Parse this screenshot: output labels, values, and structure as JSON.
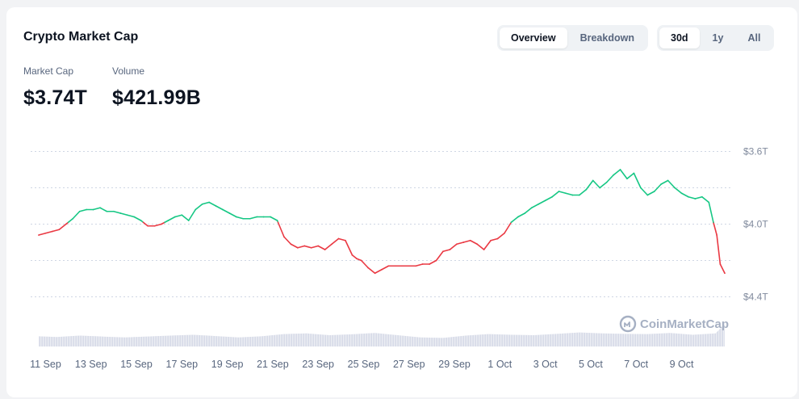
{
  "title": "Crypto Market Cap",
  "view_tabs": [
    {
      "label": "Overview",
      "active": true
    },
    {
      "label": "Breakdown",
      "active": false
    }
  ],
  "range_tabs": [
    {
      "label": "30d",
      "active": true
    },
    {
      "label": "1y",
      "active": false
    },
    {
      "label": "All",
      "active": false
    }
  ],
  "stats": {
    "market_cap_label": "Market Cap",
    "market_cap_value": "$3.74T",
    "volume_label": "Volume",
    "volume_value": "$421.99B"
  },
  "watermark": "CoinMarketCap",
  "colors": {
    "up": "#16c784",
    "down": "#ea3943",
    "grid": "#cfd6e4",
    "volume": "#c9cfe0"
  },
  "chart_data": {
    "type": "line",
    "title": "",
    "xlabel": "",
    "ylabel": "",
    "y_ticks": [
      "$3.6T",
      "$4.0T",
      "$4.4T"
    ],
    "ylim": [
      3.46,
      4.46
    ],
    "x_ticks": [
      "11 Sep",
      "13 Sep",
      "15 Sep",
      "17 Sep",
      "19 Sep",
      "21 Sep",
      "23 Sep",
      "25 Sep",
      "27 Sep",
      "29 Sep",
      "1 Oct",
      "3 Oct",
      "5 Oct",
      "7 Oct",
      "9 Oct"
    ],
    "x_range": [
      10.7,
      40.9
    ],
    "grid": true,
    "baseline": 4.01,
    "series": [
      {
        "x": [
          10.7,
          11.0,
          11.3,
          11.6,
          11.9,
          12.2,
          12.5,
          12.8,
          13.1,
          13.4,
          13.7,
          14.0,
          14.3,
          14.6,
          14.9,
          15.2,
          15.5,
          15.8,
          16.1,
          16.4,
          16.7,
          17.0,
          17.3,
          17.6,
          17.9,
          18.2,
          18.5,
          18.8,
          19.1,
          19.4,
          19.7,
          20.0,
          20.3,
          20.6,
          20.9,
          21.2,
          21.5,
          21.8,
          22.1,
          22.4,
          22.7,
          23.0,
          23.3,
          23.6,
          23.9,
          24.2,
          24.5,
          24.7,
          24.9,
          25.2,
          25.5,
          25.8,
          26.1,
          26.4,
          26.7,
          27.0,
          27.3,
          27.6,
          27.9,
          28.2,
          28.5,
          28.8,
          29.1,
          29.4,
          29.7,
          30.0,
          30.3,
          30.6,
          30.9,
          31.2,
          31.5,
          31.8,
          32.1,
          32.4,
          32.7,
          33.0,
          33.3,
          33.6,
          33.9,
          34.2,
          34.5,
          34.8,
          35.1,
          35.4,
          35.7,
          36.0,
          36.3,
          36.6,
          36.9,
          37.2,
          37.5,
          37.8,
          38.1,
          38.4,
          38.7,
          39.0,
          39.3,
          39.6,
          39.9,
          40.2,
          40.4,
          40.55,
          40.7,
          40.9
        ],
        "values": [
          3.94,
          3.95,
          3.96,
          3.97,
          4.0,
          4.03,
          4.07,
          4.08,
          4.08,
          4.09,
          4.07,
          4.07,
          4.06,
          4.05,
          4.04,
          4.02,
          3.99,
          3.99,
          4.0,
          4.02,
          4.04,
          4.05,
          4.02,
          4.08,
          4.11,
          4.12,
          4.1,
          4.08,
          4.06,
          4.04,
          4.03,
          4.03,
          4.04,
          4.04,
          4.04,
          4.02,
          3.93,
          3.89,
          3.87,
          3.88,
          3.87,
          3.88,
          3.86,
          3.89,
          3.92,
          3.91,
          3.83,
          3.81,
          3.8,
          3.76,
          3.73,
          3.75,
          3.77,
          3.77,
          3.77,
          3.77,
          3.77,
          3.78,
          3.78,
          3.8,
          3.85,
          3.86,
          3.89,
          3.9,
          3.91,
          3.89,
          3.86,
          3.91,
          3.92,
          3.95,
          4.01,
          4.04,
          4.06,
          4.09,
          4.11,
          4.13,
          4.15,
          4.18,
          4.17,
          4.16,
          4.16,
          4.19,
          4.24,
          4.2,
          4.23,
          4.27,
          4.3,
          4.25,
          4.28,
          4.2,
          4.16,
          4.18,
          4.22,
          4.24,
          4.2,
          4.17,
          4.15,
          4.14,
          4.15,
          4.12,
          4.01,
          3.94,
          3.78,
          3.73
        ]
      }
    ],
    "volume": {
      "x": [
        10.7,
        11.5,
        12.5,
        13.5,
        14.5,
        15.5,
        16.5,
        17.5,
        18.5,
        19.5,
        20.5,
        21.5,
        22.5,
        23.5,
        24.5,
        25.5,
        26.5,
        27.5,
        28.5,
        29.5,
        30.5,
        31.5,
        32.5,
        33.5,
        34.5,
        35.5,
        36.5,
        37.5,
        38.5,
        39.5,
        40.5,
        40.9
      ],
      "values": [
        0.45,
        0.42,
        0.48,
        0.44,
        0.4,
        0.44,
        0.48,
        0.52,
        0.46,
        0.4,
        0.45,
        0.55,
        0.58,
        0.5,
        0.54,
        0.6,
        0.5,
        0.4,
        0.38,
        0.48,
        0.55,
        0.52,
        0.5,
        0.56,
        0.62,
        0.58,
        0.56,
        0.55,
        0.6,
        0.52,
        0.58,
        1.0
      ]
    }
  }
}
